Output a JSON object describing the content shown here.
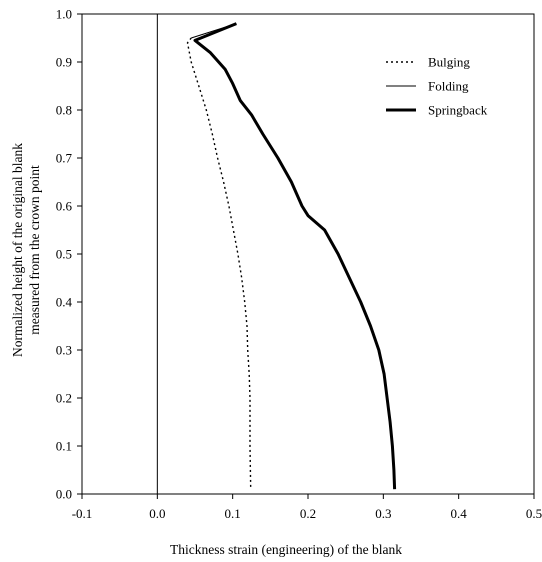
{
  "chart_data": {
    "type": "line",
    "title": "",
    "xlabel": "Thickness strain (engineering) of the blank",
    "ylabel_lines": [
      "Normalized height of the original blank",
      "measured from the crown point"
    ],
    "xlim": [
      -0.1,
      0.5
    ],
    "ylim": [
      0.0,
      1.0
    ],
    "xticks": [
      -0.1,
      0.0,
      0.1,
      0.2,
      0.3,
      0.4,
      0.5
    ],
    "xtick_labels": [
      "-0.1",
      "0.0",
      "0.1",
      "0.2",
      "0.3",
      "0.4",
      "0.5"
    ],
    "yticks": [
      0.0,
      0.1,
      0.2,
      0.3,
      0.4,
      0.5,
      0.6,
      0.7,
      0.8,
      0.9,
      1.0
    ],
    "ytick_labels": [
      "0.0",
      "0.1",
      "0.2",
      "0.3",
      "0.4",
      "0.5",
      "0.6",
      "0.7",
      "0.8",
      "0.9",
      "1.0"
    ],
    "grid": false,
    "legend_position": "top-right",
    "series": [
      {
        "name": "Bulging",
        "style": "dotted",
        "points": [
          [
            0.045,
            0.95
          ],
          [
            0.04,
            0.94
          ],
          [
            0.045,
            0.9
          ],
          [
            0.055,
            0.85
          ],
          [
            0.065,
            0.8
          ],
          [
            0.073,
            0.75
          ],
          [
            0.08,
            0.7
          ],
          [
            0.088,
            0.65
          ],
          [
            0.095,
            0.6
          ],
          [
            0.101,
            0.55
          ],
          [
            0.107,
            0.5
          ],
          [
            0.112,
            0.45
          ],
          [
            0.116,
            0.4
          ],
          [
            0.119,
            0.35
          ],
          [
            0.12,
            0.3
          ],
          [
            0.122,
            0.25
          ],
          [
            0.123,
            0.2
          ],
          [
            0.123,
            0.1
          ],
          [
            0.124,
            0.01
          ]
        ]
      },
      {
        "name": "Folding",
        "style": "thin",
        "points": [
          [
            0.045,
            0.95
          ],
          [
            0.105,
            0.98
          ]
        ]
      },
      {
        "name": "Springback",
        "style": "thick",
        "points": [
          [
            0.105,
            0.98
          ],
          [
            0.05,
            0.945
          ],
          [
            0.07,
            0.92
          ],
          [
            0.09,
            0.885
          ],
          [
            0.1,
            0.855
          ],
          [
            0.11,
            0.82
          ],
          [
            0.125,
            0.79
          ],
          [
            0.14,
            0.75
          ],
          [
            0.16,
            0.7
          ],
          [
            0.178,
            0.65
          ],
          [
            0.192,
            0.6
          ],
          [
            0.2,
            0.58
          ],
          [
            0.222,
            0.55
          ],
          [
            0.24,
            0.5
          ],
          [
            0.255,
            0.45
          ],
          [
            0.27,
            0.4
          ],
          [
            0.283,
            0.35
          ],
          [
            0.294,
            0.3
          ],
          [
            0.301,
            0.25
          ],
          [
            0.305,
            0.2
          ],
          [
            0.309,
            0.15
          ],
          [
            0.312,
            0.1
          ],
          [
            0.314,
            0.05
          ],
          [
            0.315,
            0.01
          ]
        ]
      }
    ]
  }
}
